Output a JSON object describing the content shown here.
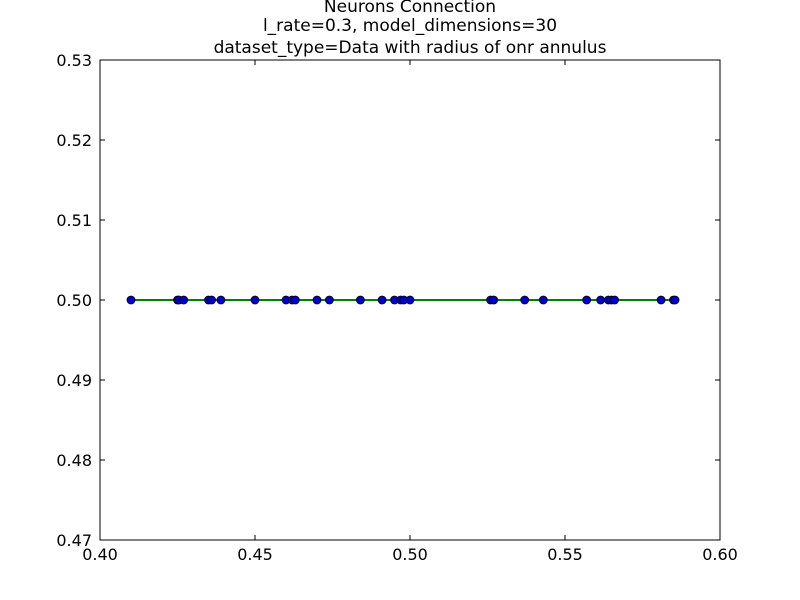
{
  "chart_data": {
    "type": "line",
    "title_lines": [
      "Neurons Connection",
      "l_rate=0.3, model_dimensions=30",
      "dataset_type=Data with radius of onr annulus"
    ],
    "xlabel": "",
    "ylabel": "",
    "xlim": [
      0.4,
      0.6
    ],
    "ylim": [
      0.47,
      0.53
    ],
    "x_ticks": [
      "0.40",
      "0.45",
      "0.50",
      "0.55",
      "0.60"
    ],
    "y_ticks": [
      "0.47",
      "0.48",
      "0.49",
      "0.50",
      "0.51",
      "0.52",
      "0.53"
    ],
    "grid": false,
    "series": [
      {
        "line_color": "#008000",
        "marker_color": "#0000cc",
        "x": [
          0.41,
          0.425,
          0.4255,
          0.427,
          0.435,
          0.436,
          0.439,
          0.45,
          0.46,
          0.462,
          0.463,
          0.47,
          0.474,
          0.484,
          0.491,
          0.495,
          0.497,
          0.498,
          0.5,
          0.526,
          0.527,
          0.537,
          0.543,
          0.557,
          0.5615,
          0.564,
          0.565,
          0.566,
          0.581,
          0.585,
          0.5855
        ],
        "y": [
          0.5,
          0.5,
          0.5,
          0.5,
          0.5,
          0.5,
          0.5,
          0.5,
          0.5,
          0.5,
          0.5,
          0.5,
          0.5,
          0.5,
          0.5,
          0.5,
          0.5,
          0.5,
          0.5,
          0.5,
          0.5,
          0.5,
          0.5,
          0.5,
          0.5,
          0.5,
          0.5,
          0.5,
          0.5,
          0.5,
          0.5
        ]
      }
    ]
  }
}
